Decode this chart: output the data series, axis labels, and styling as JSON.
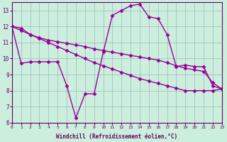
{
  "line1": [
    12.0,
    9.7,
    9.8,
    9.8,
    9.8,
    9.8,
    8.3,
    6.3,
    7.8,
    7.8,
    10.4,
    12.7,
    13.0,
    13.3,
    13.4,
    12.6,
    12.5,
    11.5,
    9.5,
    9.6,
    9.5,
    9.5,
    8.3,
    8.1
  ],
  "line2": [
    12.0,
    11.75,
    11.5,
    11.25,
    11.0,
    10.75,
    10.5,
    10.25,
    10.0,
    9.75,
    9.55,
    9.35,
    9.15,
    8.95,
    8.75,
    8.6,
    8.45,
    8.3,
    8.15,
    8.0,
    8.0,
    8.0,
    8.0,
    8.1
  ],
  "line3": [
    12.0,
    11.9,
    11.5,
    11.3,
    11.15,
    11.05,
    10.95,
    10.85,
    10.75,
    10.6,
    10.5,
    10.4,
    10.3,
    10.2,
    10.1,
    10.0,
    9.9,
    9.75,
    9.55,
    9.4,
    9.3,
    9.2,
    8.5,
    8.1
  ],
  "x": [
    0,
    1,
    2,
    3,
    4,
    5,
    6,
    7,
    8,
    9,
    10,
    11,
    12,
    13,
    14,
    15,
    16,
    17,
    18,
    19,
    20,
    21,
    22,
    23
  ],
  "xlim": [
    0,
    23
  ],
  "ylim": [
    6,
    13.5
  ],
  "yticks": [
    6,
    7,
    8,
    9,
    10,
    11,
    12,
    13
  ],
  "xticks": [
    0,
    1,
    2,
    3,
    4,
    5,
    6,
    7,
    8,
    9,
    10,
    11,
    12,
    13,
    14,
    15,
    16,
    17,
    18,
    19,
    20,
    21,
    22,
    23
  ],
  "xlabel": "Windchill (Refroidissement éolien,°C)",
  "line_color": "#990099",
  "bg_color": "#cceedd",
  "grid_color": "#99bbbb",
  "axis_color": "#660066",
  "tick_label_color": "#660066",
  "marker": "D",
  "markersize": 2.5,
  "linewidth": 1.0
}
